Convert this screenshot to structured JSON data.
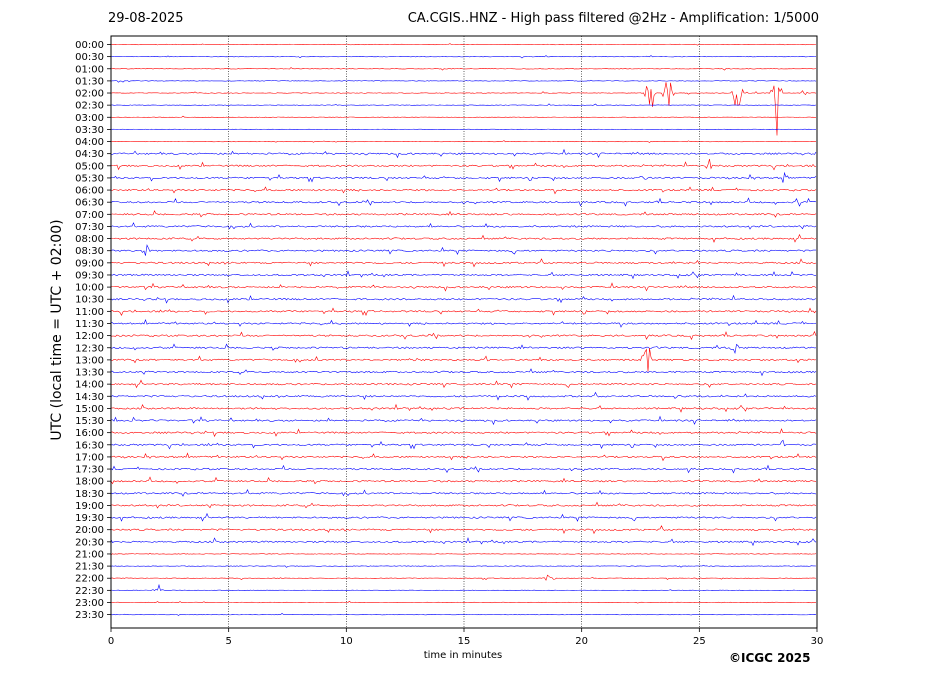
{
  "header": {
    "date": "29-08-2025",
    "title": "CA.CGIS..HNZ - High pass filtered @2Hz - Amplification: 1/5000"
  },
  "footer": {
    "copyright": "©ICGC 2025"
  },
  "colors": {
    "red": "#ff0000",
    "blue": "#0000ff"
  },
  "chart_data": {
    "type": "line",
    "xlabel": "time in minutes",
    "ylabel": "UTC (local time = UTC + 02:00)",
    "xlim": [
      0,
      30
    ],
    "xticks": [
      0,
      5,
      10,
      15,
      20,
      25,
      30
    ],
    "vertical_gridlines": [
      5,
      10,
      15,
      20,
      25
    ],
    "rows": [
      "00:00",
      "00:30",
      "01:00",
      "01:30",
      "02:00",
      "02:30",
      "03:00",
      "03:30",
      "04:00",
      "04:30",
      "05:00",
      "05:30",
      "06:00",
      "06:30",
      "07:00",
      "07:30",
      "08:00",
      "08:30",
      "09:00",
      "09:30",
      "10:00",
      "10:30",
      "11:00",
      "11:30",
      "12:00",
      "12:30",
      "13:00",
      "13:30",
      "14:00",
      "14:30",
      "15:00",
      "15:30",
      "16:00",
      "16:30",
      "17:00",
      "17:30",
      "18:00",
      "18:30",
      "19:00",
      "19:30",
      "20:00",
      "20:30",
      "21:00",
      "21:30",
      "22:00",
      "22:30",
      "23:00",
      "23:30"
    ],
    "row_colors": "alternating red/blue starting with red",
    "events": [
      {
        "row": "02:00",
        "minute": 22.9,
        "amplitude": "large",
        "color": "red"
      },
      {
        "row": "02:00",
        "minute": 23.7,
        "amplitude": "large",
        "color": "red"
      },
      {
        "row": "02:00",
        "minute": 26.6,
        "amplitude": "large",
        "color": "red"
      },
      {
        "row": "02:00",
        "minute": 28.3,
        "amplitude": "large",
        "color": "red"
      },
      {
        "row": "02:00",
        "minute": 29.4,
        "amplitude": "small",
        "color": "red"
      },
      {
        "row": "05:00",
        "minute": 25.4,
        "amplitude": "medium",
        "color": "red"
      },
      {
        "row": "05:30",
        "minute": 22.6,
        "amplitude": "medium",
        "color": "blue"
      },
      {
        "row": "05:30",
        "minute": 28.6,
        "amplitude": "medium",
        "color": "blue"
      },
      {
        "row": "06:30",
        "minute": 29.2,
        "amplitude": "medium",
        "color": "blue"
      },
      {
        "row": "08:30",
        "minute": 1.5,
        "amplitude": "medium",
        "color": "blue"
      },
      {
        "row": "12:30",
        "minute": 26.5,
        "amplitude": "medium",
        "color": "blue"
      },
      {
        "row": "13:00",
        "minute": 22.8,
        "amplitude": "large",
        "color": "red"
      },
      {
        "row": "13:00",
        "minute": 15.9,
        "amplitude": "medium",
        "color": "red"
      },
      {
        "row": "13:00",
        "minute": 12.8,
        "amplitude": "medium",
        "color": "red"
      },
      {
        "row": "14:30",
        "minute": 24.1,
        "amplitude": "medium",
        "color": "blue"
      },
      {
        "row": "16:30",
        "minute": 28.5,
        "amplitude": "medium",
        "color": "blue"
      },
      {
        "row": "22:00",
        "minute": 18.6,
        "amplitude": "medium",
        "color": "red"
      },
      {
        "row": "22:30",
        "minute": 2.0,
        "amplitude": "medium",
        "color": "blue"
      }
    ]
  }
}
